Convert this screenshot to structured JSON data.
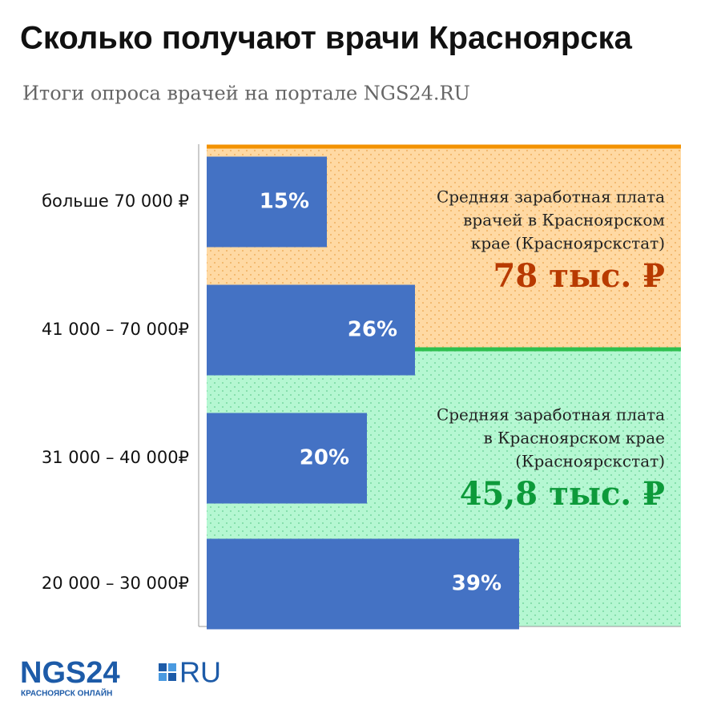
{
  "chart_data": {
    "type": "barh",
    "title": "Сколько получают врачи Красноярска",
    "subtitle": "Итоги опроса врачей на портале NGS24.RU",
    "categories": [
      "больше 70 000 ₽",
      "41 000 – 70 000₽",
      "31 000 – 40 000₽",
      "20 000 – 30 000₽"
    ],
    "values": [
      15,
      26,
      20,
      39
    ],
    "value_labels": [
      "15%",
      "26%",
      "20%",
      "39%"
    ],
    "color": "#4472c4",
    "annotations": [
      {
        "lines": [
          "Средняя заработная плата",
          "врачей в Красноярском",
          "крае (Красноярскстат)"
        ],
        "value": "78 тыс. ₽",
        "color": "#b83a00"
      },
      {
        "lines": [
          "Средняя заработная плата",
          "в Красноярском крае",
          "(Красноярскстат)"
        ],
        "value": "45,8 тыс. ₽",
        "color": "#0d9a3a"
      }
    ]
  },
  "logo": {
    "name": "NGS24",
    "domain": "RU",
    "tagline": "КРАСНОЯРСК ОНЛАЙН"
  }
}
